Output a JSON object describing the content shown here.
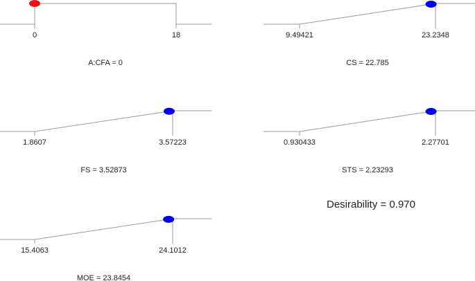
{
  "chart_data": {
    "type": "desirability-ramps",
    "panels": [
      {
        "type": "factor",
        "low": 0,
        "high": 18,
        "value": 0,
        "label": "A:CFA = 0",
        "color": "#ee1111"
      },
      {
        "type": "response",
        "low": 9.49421,
        "high": 23.2348,
        "value": 22.785,
        "label": "CS = 22.785",
        "color": "#0000ee"
      },
      {
        "type": "response",
        "low": 1.8607,
        "high": 3.57223,
        "value": 3.52873,
        "label": "FS = 3.52873",
        "color": "#0000ee"
      },
      {
        "type": "response",
        "low": 0.930433,
        "high": 2.27701,
        "value": 2.23293,
        "label": "STS = 2.23293",
        "color": "#0000ee"
      },
      {
        "type": "response",
        "low": 15.4063,
        "high": 24.1012,
        "value": 23.8454,
        "label": "MOE = 23.8454",
        "color": "#0000ee"
      }
    ],
    "desirability": "Desirability = 0.970"
  }
}
